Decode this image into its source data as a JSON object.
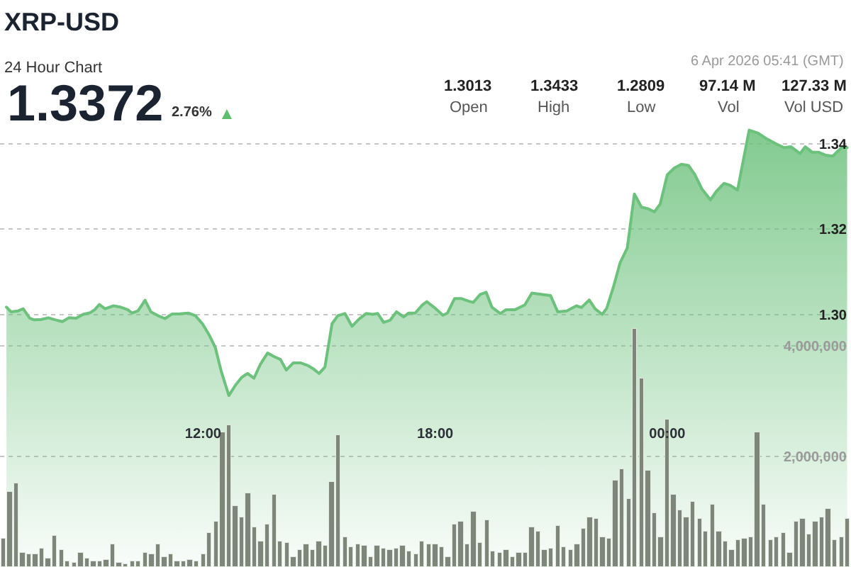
{
  "chart_data": {
    "type": "area",
    "title": "XRP-USD",
    "subtitle": "24 Hour Chart",
    "annotations": [
      "1.3372",
      "2.76%",
      "▲",
      "6 Apr 2026 05:41 (GMT)",
      "1.3013",
      "Open",
      "1.3433",
      "High",
      "1.2809",
      "Low",
      "97.14 M",
      "Vol",
      "127.33 M",
      "Vol USD"
    ],
    "series": [
      {
        "color": "#6cc17c",
        "x": [
          "2026-04-05T06:55",
          "2026-04-05T07:02",
          "2026-04-05T07:13",
          "2026-04-05T07:21",
          "2026-04-05T07:31",
          "2026-04-05T07:38",
          "2026-04-05T07:49",
          "2026-04-05T08:00",
          "2026-04-05T08:11",
          "2026-04-05T08:22",
          "2026-04-05T08:32",
          "2026-04-05T08:43",
          "2026-04-05T08:54",
          "2026-04-05T09:05",
          "2026-04-05T09:12",
          "2026-04-05T09:19",
          "2026-04-05T09:28",
          "2026-04-05T09:41",
          "2026-04-05T09:52",
          "2026-04-05T10:03",
          "2026-04-05T10:10",
          "2026-04-05T10:19",
          "2026-04-05T10:30",
          "2026-04-05T10:39",
          "2026-04-05T10:50",
          "2026-04-05T11:01",
          "2026-04-05T11:12",
          "2026-04-05T11:23",
          "2026-04-05T11:37",
          "2026-04-05T11:48",
          "2026-04-05T11:59",
          "2026-04-05T12:10",
          "2026-04-05T12:19",
          "2026-04-05T12:28",
          "2026-04-05T12:40",
          "2026-04-05T12:50",
          "2026-04-05T13:00",
          "2026-04-05T13:09",
          "2026-04-05T13:19",
          "2026-04-05T13:29",
          "2026-04-05T13:40",
          "2026-04-05T13:51",
          "2026-04-05T14:00",
          "2026-04-05T14:09",
          "2026-04-05T14:20",
          "2026-04-05T14:31",
          "2026-04-05T14:42",
          "2026-04-05T14:51",
          "2026-04-05T15:00",
          "2026-04-05T15:09",
          "2026-04-05T15:20",
          "2026-04-05T15:29",
          "2026-04-05T15:40",
          "2026-04-05T15:51",
          "2026-04-05T16:02",
          "2026-04-05T16:13",
          "2026-04-05T16:23",
          "2026-04-05T16:31",
          "2026-04-05T16:40",
          "2026-04-05T16:50",
          "2026-04-05T17:00",
          "2026-04-05T17:11",
          "2026-04-05T17:19",
          "2026-04-05T17:29",
          "2026-04-05T17:40",
          "2026-04-05T17:47",
          "2026-04-05T17:58",
          "2026-04-05T18:12",
          "2026-04-05T18:19",
          "2026-04-05T18:30",
          "2026-04-05T18:41",
          "2026-04-05T18:52",
          "2026-04-05T18:59",
          "2026-04-05T19:10",
          "2026-04-05T19:19",
          "2026-04-05T19:28",
          "2026-04-05T19:41",
          "2026-04-05T19:50",
          "2026-04-05T20:04",
          "2026-04-05T20:19",
          "2026-04-05T20:30",
          "2026-04-05T20:44",
          "2026-04-05T20:59",
          "2026-04-05T21:10",
          "2026-04-05T21:24",
          "2026-04-05T21:39",
          "2026-04-05T21:47",
          "2026-04-05T21:59",
          "2026-04-05T22:08",
          "2026-04-05T22:19",
          "2026-04-05T22:26",
          "2026-04-05T22:37",
          "2026-04-05T22:47",
          "2026-04-05T22:58",
          "2026-04-05T23:09",
          "2026-04-05T23:20",
          "2026-04-05T23:31",
          "2026-04-05T23:40",
          "2026-04-05T23:49",
          "2026-04-06T00:00",
          "2026-04-06T00:11",
          "2026-04-06T00:22",
          "2026-04-06T00:33",
          "2026-04-06T00:43",
          "2026-04-06T00:54",
          "2026-04-06T01:07",
          "2026-04-06T01:16",
          "2026-04-06T01:28",
          "2026-04-06T01:38",
          "2026-04-06T01:49",
          "2026-04-06T02:07",
          "2026-04-06T02:21",
          "2026-04-06T02:36",
          "2026-04-06T02:50",
          "2026-04-06T03:01",
          "2026-04-06T03:12",
          "2026-04-06T03:19",
          "2026-04-06T03:26",
          "2026-04-06T03:34",
          "2026-04-06T03:45",
          "2026-04-06T03:55",
          "2026-04-06T04:06",
          "2026-04-06T04:17",
          "2026-04-06T04:24",
          "2026-04-06T04:32",
          "2026-04-06T04:39"
        ],
        "values": [
          1.3017,
          1.3006,
          1.3008,
          1.3013,
          1.2991,
          1.2987,
          1.2988,
          1.2992,
          1.2987,
          1.2983,
          1.2992,
          1.2991,
          1.3,
          1.3004,
          1.3011,
          1.3023,
          1.3013,
          1.302,
          1.3017,
          1.3011,
          1.3003,
          1.3008,
          1.3033,
          1.3006,
          1.2997,
          1.299,
          1.3001,
          1.3001,
          1.3003,
          1.2997,
          1.2978,
          1.295,
          1.2922,
          1.2867,
          1.2809,
          1.2833,
          1.2852,
          1.2861,
          1.285,
          1.2883,
          1.2909,
          1.29,
          1.2894,
          1.2869,
          1.2886,
          1.2886,
          1.288,
          1.2872,
          1.2861,
          1.2876,
          1.2978,
          1.2997,
          1.3002,
          1.2972,
          1.2989,
          1.3002,
          1.3,
          1.3002,
          1.2981,
          1.2986,
          1.3006,
          1.2994,
          1.3003,
          1.3003,
          1.3022,
          1.303,
          1.3017,
          1.2998,
          1.3003,
          1.3037,
          1.3037,
          1.3031,
          1.3028,
          1.3047,
          1.3052,
          1.3017,
          1.3002,
          1.3011,
          1.3011,
          1.3022,
          1.305,
          1.3047,
          1.3044,
          1.3006,
          1.3008,
          1.302,
          1.3016,
          1.3034,
          1.3013,
          1.3,
          1.3014,
          1.3067,
          1.3122,
          1.3156,
          1.3283,
          1.3252,
          1.3248,
          1.3241,
          1.3259,
          1.3328,
          1.3344,
          1.3353,
          1.335,
          1.3328,
          1.3294,
          1.3269,
          1.3289,
          1.3308,
          1.3303,
          1.3292,
          1.3433,
          1.3426,
          1.3411,
          1.34,
          1.3392,
          1.3394,
          1.3386,
          1.3378,
          1.3394,
          1.3381,
          1.3381,
          1.3374,
          1.3372,
          1.3383,
          1.3394,
          1.3392
        ]
      },
      {
        "type": "bar",
        "axis": "y2",
        "color": "#7d8679",
        "x": [
          "2026-04-05T06:50",
          "2026-04-05T07:00",
          "2026-04-05T07:10",
          "2026-04-05T07:20",
          "2026-04-05T07:30",
          "2026-04-05T07:40",
          "2026-04-05T07:50",
          "2026-04-05T08:00",
          "2026-04-05T08:10",
          "2026-04-05T08:20",
          "2026-04-05T08:30",
          "2026-04-05T08:40",
          "2026-04-05T08:50",
          "2026-04-05T09:00",
          "2026-04-05T09:10",
          "2026-04-05T09:20",
          "2026-04-05T09:30",
          "2026-04-05T09:40",
          "2026-04-05T09:50",
          "2026-04-05T10:00",
          "2026-04-05T10:10",
          "2026-04-05T10:20",
          "2026-04-05T10:30",
          "2026-04-05T10:40",
          "2026-04-05T10:50",
          "2026-04-05T11:00",
          "2026-04-05T11:10",
          "2026-04-05T11:20",
          "2026-04-05T11:30",
          "2026-04-05T11:40",
          "2026-04-05T11:50",
          "2026-04-05T12:00",
          "2026-04-05T12:10",
          "2026-04-05T12:20",
          "2026-04-05T12:30",
          "2026-04-05T12:40",
          "2026-04-05T12:50",
          "2026-04-05T13:00",
          "2026-04-05T13:10",
          "2026-04-05T13:20",
          "2026-04-05T13:30",
          "2026-04-05T13:40",
          "2026-04-05T13:50",
          "2026-04-05T14:00",
          "2026-04-05T14:10",
          "2026-04-05T14:20",
          "2026-04-05T14:30",
          "2026-04-05T14:40",
          "2026-04-05T14:50",
          "2026-04-05T15:00",
          "2026-04-05T15:10",
          "2026-04-05T15:20",
          "2026-04-05T15:30",
          "2026-04-05T15:40",
          "2026-04-05T15:50",
          "2026-04-05T16:00",
          "2026-04-05T16:10",
          "2026-04-05T16:20",
          "2026-04-05T16:30",
          "2026-04-05T16:40",
          "2026-04-05T16:50",
          "2026-04-05T17:00",
          "2026-04-05T17:10",
          "2026-04-05T17:20",
          "2026-04-05T17:30",
          "2026-04-05T17:40",
          "2026-04-05T17:50",
          "2026-04-05T18:00",
          "2026-04-05T18:10",
          "2026-04-05T18:20",
          "2026-04-05T18:30",
          "2026-04-05T18:40",
          "2026-04-05T18:50",
          "2026-04-05T19:00",
          "2026-04-05T19:10",
          "2026-04-05T19:20",
          "2026-04-05T19:30",
          "2026-04-05T19:40",
          "2026-04-05T19:50",
          "2026-04-05T20:00",
          "2026-04-05T20:10",
          "2026-04-05T20:20",
          "2026-04-05T20:30",
          "2026-04-05T20:40",
          "2026-04-05T20:50",
          "2026-04-05T21:00",
          "2026-04-05T21:10",
          "2026-04-05T21:20",
          "2026-04-05T21:30",
          "2026-04-05T21:40",
          "2026-04-05T21:50",
          "2026-04-05T22:00",
          "2026-04-05T22:10",
          "2026-04-05T22:20",
          "2026-04-05T22:30",
          "2026-04-05T22:40",
          "2026-04-05T22:50",
          "2026-04-05T23:00",
          "2026-04-05T23:10",
          "2026-04-05T23:20",
          "2026-04-05T23:30",
          "2026-04-05T23:40",
          "2026-04-05T23:50",
          "2026-04-06T00:00",
          "2026-04-06T00:10",
          "2026-04-06T00:20",
          "2026-04-06T00:30",
          "2026-04-06T00:40",
          "2026-04-06T00:50",
          "2026-04-06T01:00",
          "2026-04-06T01:10",
          "2026-04-06T01:20",
          "2026-04-06T01:30",
          "2026-04-06T01:40",
          "2026-04-06T01:50",
          "2026-04-06T02:00",
          "2026-04-06T02:10",
          "2026-04-06T02:20",
          "2026-04-06T02:30",
          "2026-04-06T02:40",
          "2026-04-06T02:50",
          "2026-04-06T03:00",
          "2026-04-06T03:10",
          "2026-04-06T03:20",
          "2026-04-06T03:30",
          "2026-04-06T03:40",
          "2026-04-06T03:50",
          "2026-04-06T04:00",
          "2026-04-06T04:10",
          "2026-04-06T04:20",
          "2026-04-06T04:30",
          "2026-04-06T04:40"
        ],
        "values": [
          510000,
          1360000,
          1510000,
          250000,
          240000,
          240000,
          340000,
          150000,
          570000,
          310000,
          100000,
          80000,
          260000,
          160000,
          100000,
          110000,
          140000,
          410000,
          80000,
          40000,
          110000,
          110000,
          250000,
          220000,
          420000,
          190000,
          240000,
          100000,
          110000,
          130000,
          110000,
          230000,
          620000,
          810000,
          2430000,
          2570000,
          1110000,
          910000,
          1340000,
          720000,
          470000,
          780000,
          1320000,
          470000,
          440000,
          190000,
          310000,
          410000,
          300000,
          470000,
          380000,
          1550000,
          2380000,
          550000,
          360000,
          420000,
          380000,
          190000,
          380000,
          330000,
          310000,
          340000,
          380000,
          280000,
          240000,
          470000,
          420000,
          420000,
          360000,
          190000,
          760000,
          810000,
          410000,
          990000,
          440000,
          840000,
          270000,
          250000,
          310000,
          190000,
          250000,
          250000,
          710000,
          630000,
          300000,
          340000,
          740000,
          360000,
          300000,
          420000,
          680000,
          890000,
          860000,
          540000,
          510000,
          1570000,
          1760000,
          1220000,
          4310000,
          3410000,
          1740000,
          980000,
          540000,
          2680000,
          1300000,
          1020000,
          900000,
          1190000,
          880000,
          650000,
          1130000,
          650000,
          470000,
          310000,
          490000,
          510000,
          540000,
          2440000,
          1130000,
          480000,
          550000,
          620000,
          250000,
          810000,
          870000,
          590000,
          830000,
          910000,
          1060000,
          480000,
          550000,
          860000
        ]
      }
    ],
    "xlim": [
      "2026-04-05T06:45",
      "2026-04-06T04:45"
    ],
    "xticks": [
      {
        "value": "2026-04-05T12:00",
        "label": "12:00"
      },
      {
        "value": "2026-04-05T18:00",
        "label": "18:00"
      },
      {
        "value": "2026-04-06T00:00",
        "label": "00:00"
      }
    ],
    "ylim": [
      1.2406,
      1.3739
    ],
    "yticks": [
      1.34,
      1.32,
      {
        "value": 1.3,
        "label": "1.30"
      }
    ],
    "y2lim": [
      0,
      10260000
    ],
    "y2ticks": [
      {
        "value": 2000000,
        "label": "2,000,000"
      },
      {
        "value": 4000000,
        "label": "4,000,000"
      }
    ],
    "grid": "y"
  }
}
